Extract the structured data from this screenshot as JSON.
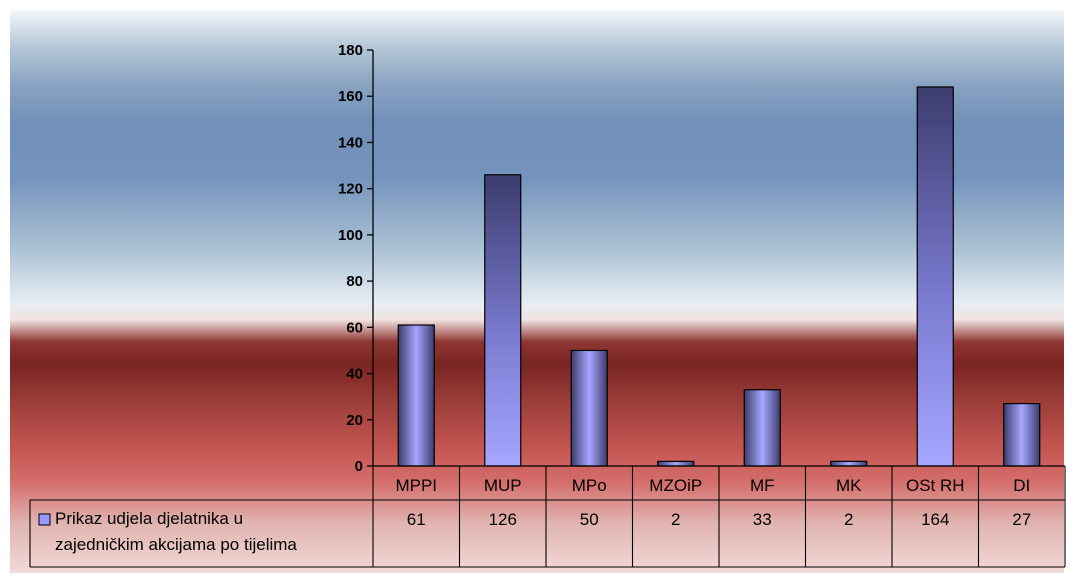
{
  "chart_data": {
    "type": "bar",
    "categories": [
      "MPPI",
      "MUP",
      "MPo",
      "MZOiP",
      "MF",
      "MK",
      "OSt RH",
      "DI"
    ],
    "series": [
      {
        "name": "Prikaz udjela djelatnika u zajedničkim akcijama po tijelima",
        "name_lines": [
          "Prikaz udjela djelatnika u",
          "zajedničkim akcijama po tijelima"
        ],
        "values": [
          61,
          126,
          50,
          2,
          33,
          2,
          164,
          27
        ],
        "value_labels": [
          "61",
          "126",
          "50",
          "2",
          "33",
          "2",
          "164",
          "27"
        ]
      }
    ],
    "ylim": [
      0,
      180
    ],
    "yticks": [
      0,
      20,
      40,
      60,
      80,
      100,
      120,
      140,
      160,
      180
    ],
    "grid": false,
    "legend": "data-table-left",
    "colors": {
      "bar_light": "#a6a6ff",
      "bar_dark": "#3c3c6e",
      "legend_key": "#9999ff"
    }
  }
}
